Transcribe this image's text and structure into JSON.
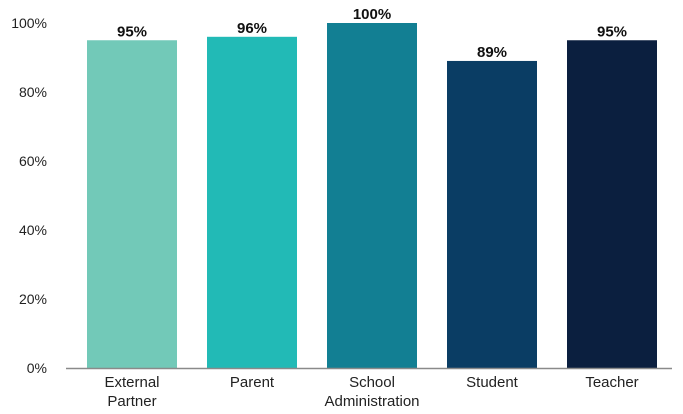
{
  "chart_data": {
    "type": "bar",
    "categories": [
      [
        "External",
        "Partner"
      ],
      [
        "Parent"
      ],
      [
        "School",
        "Administration"
      ],
      [
        "Student"
      ],
      [
        "Teacher"
      ]
    ],
    "values": [
      95,
      96,
      100,
      89,
      95
    ],
    "data_labels": [
      "95%",
      "96%",
      "100%",
      "89%",
      "95%"
    ],
    "colors": [
      "#72c9b8",
      "#22bab6",
      "#127f93",
      "#0a3d64",
      "#0b1f3f"
    ],
    "ylim": [
      0,
      100
    ],
    "yticks": [
      {
        "value": 0,
        "label": "0%"
      },
      {
        "value": 20,
        "label": "20%"
      },
      {
        "value": 40,
        "label": "40%"
      },
      {
        "value": 60,
        "label": "60%"
      },
      {
        "value": 80,
        "label": "80%"
      },
      {
        "value": 100,
        "label": "100%"
      }
    ],
    "grid": false,
    "title": "",
    "xlabel": "",
    "ylabel": ""
  }
}
